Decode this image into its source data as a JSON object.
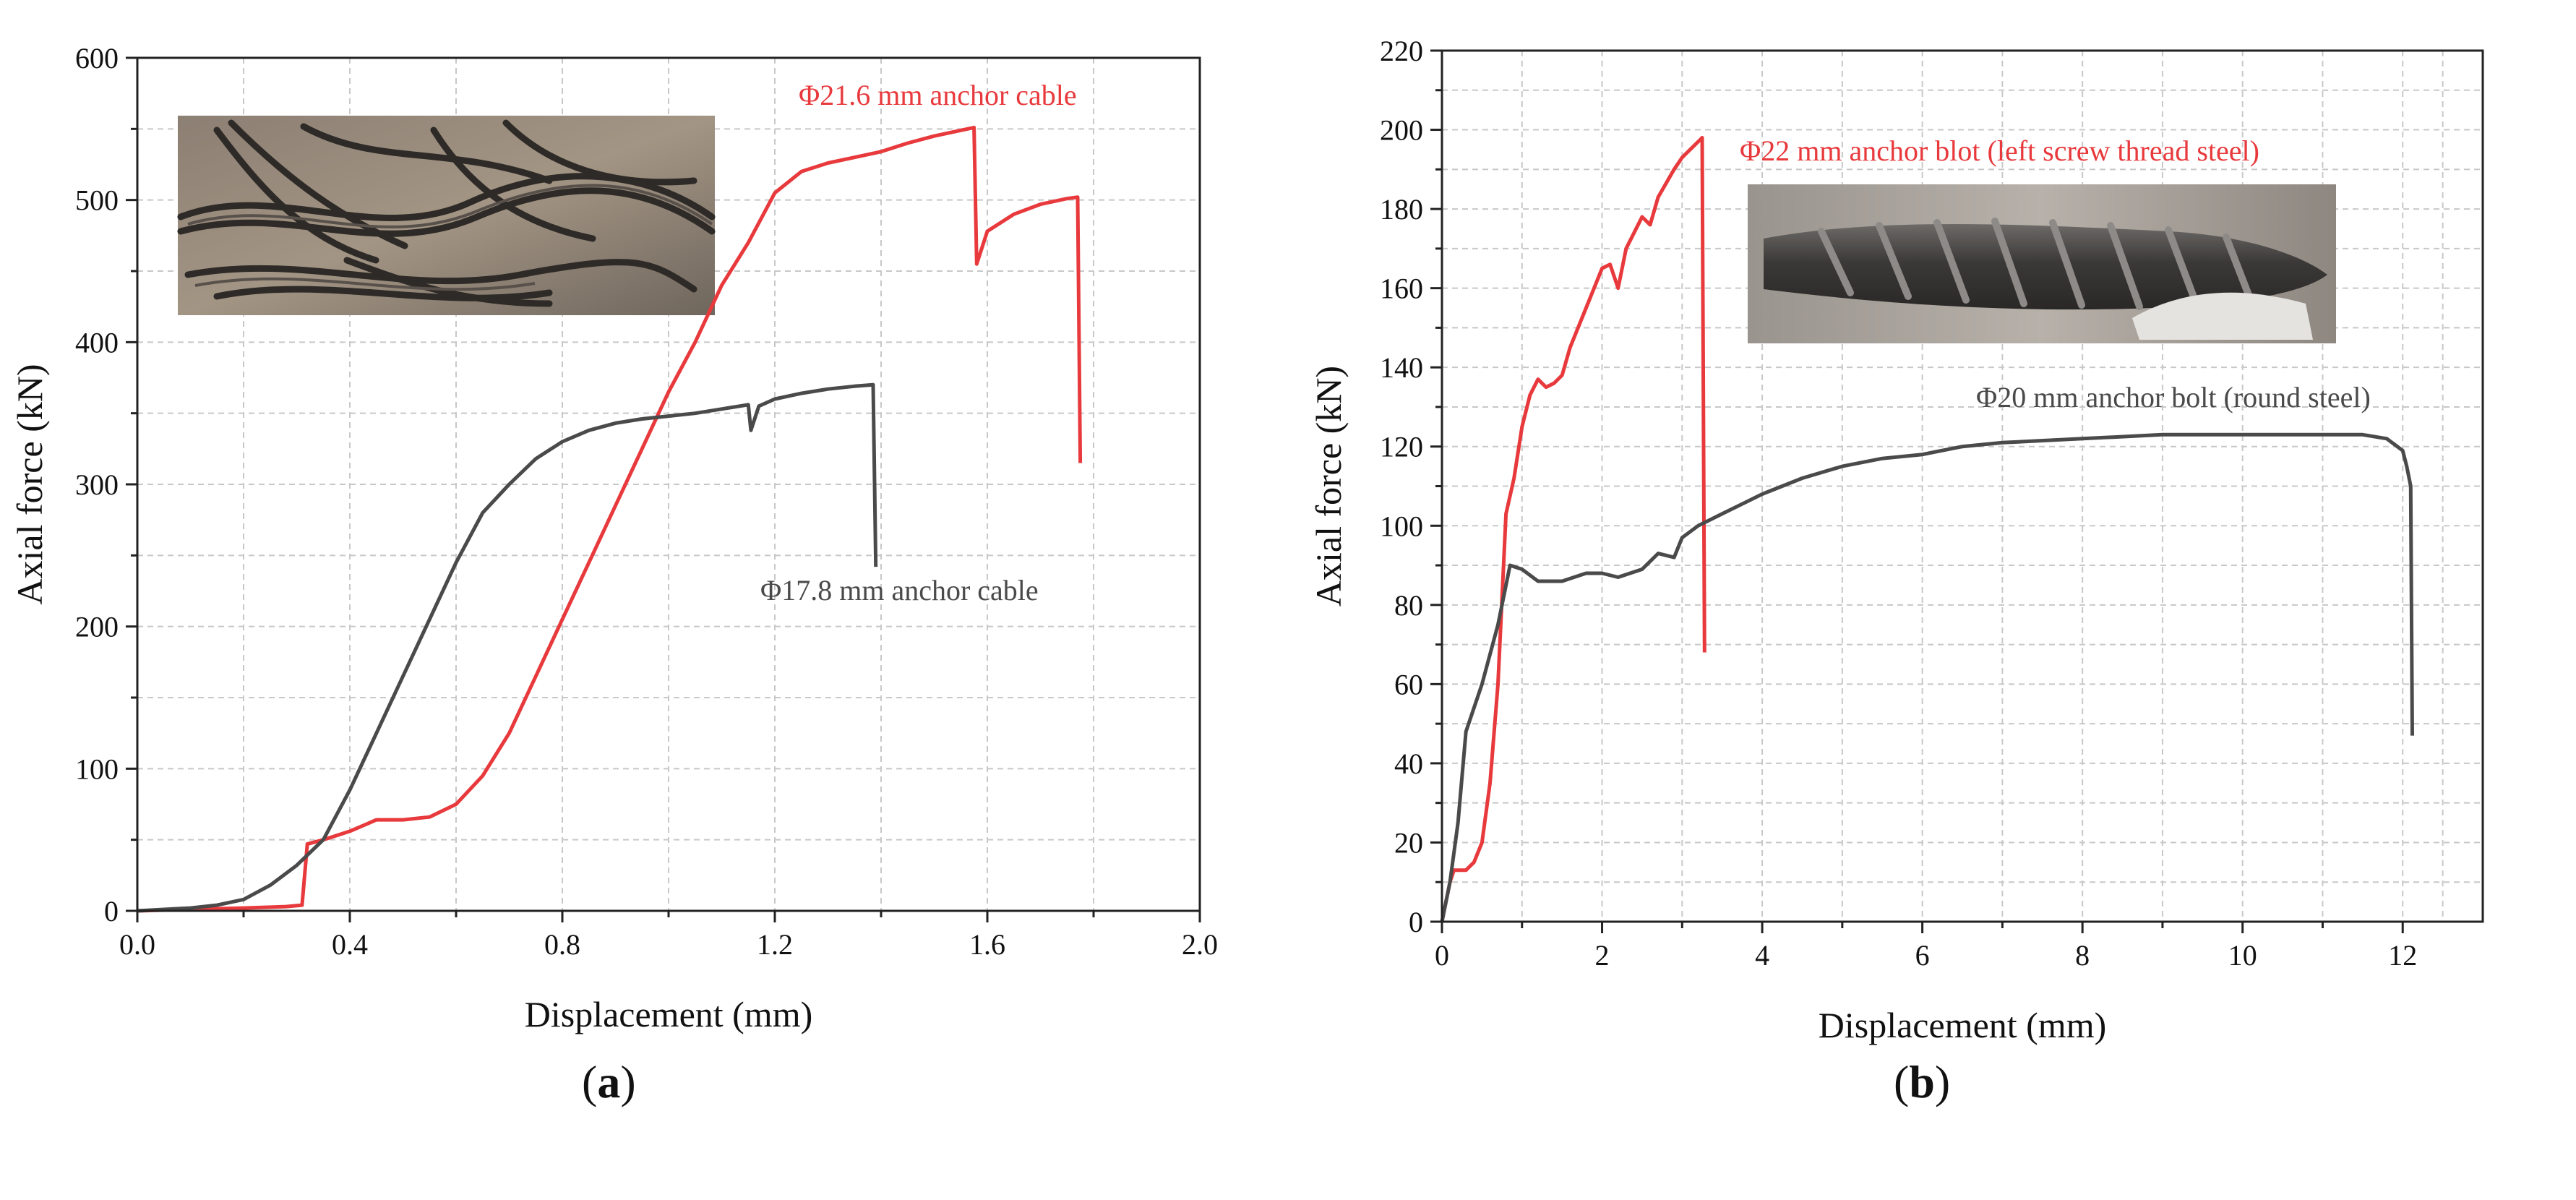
{
  "chart_data": [
    {
      "type": "line",
      "panel": "a",
      "title": "",
      "xlabel": "Displacement (mm)",
      "ylabel": "Axial force (kN)",
      "xlim": [
        0,
        2.0
      ],
      "ylim": [
        0,
        600
      ],
      "xticks": [
        0,
        0.4,
        0.8,
        1.2,
        1.6,
        2.0
      ],
      "xtick_labels": [
        "0.0",
        "0.4",
        "0.8",
        "1.2",
        "1.6",
        "2.0"
      ],
      "yticks": [
        0,
        100,
        200,
        300,
        400,
        500,
        600
      ],
      "ytick_labels": [
        "0",
        "100",
        "200",
        "300",
        "400",
        "500",
        "600"
      ],
      "grid": true,
      "inset_photo": "twisted steel strand wires of failed anchor cable",
      "series": [
        {
          "name": "Φ21.6 mm anchor cable",
          "color": "#e8393c",
          "points": [
            [
              0,
              0
            ],
            [
              0.1,
              1
            ],
            [
              0.2,
              2
            ],
            [
              0.28,
              3
            ],
            [
              0.31,
              4
            ],
            [
              0.32,
              47
            ],
            [
              0.35,
              50
            ],
            [
              0.4,
              56
            ],
            [
              0.45,
              64
            ],
            [
              0.5,
              64
            ],
            [
              0.55,
              66
            ],
            [
              0.6,
              75
            ],
            [
              0.65,
              95
            ],
            [
              0.7,
              125
            ],
            [
              0.75,
              165
            ],
            [
              0.8,
              205
            ],
            [
              0.85,
              245
            ],
            [
              0.9,
              285
            ],
            [
              0.95,
              325
            ],
            [
              1.0,
              365
            ],
            [
              1.05,
              400
            ],
            [
              1.1,
              440
            ],
            [
              1.15,
              470
            ],
            [
              1.2,
              505
            ],
            [
              1.25,
              520
            ],
            [
              1.3,
              526
            ],
            [
              1.35,
              530
            ],
            [
              1.4,
              534
            ],
            [
              1.45,
              540
            ],
            [
              1.5,
              545
            ],
            [
              1.55,
              549
            ],
            [
              1.575,
              551
            ],
            [
              1.58,
              455
            ],
            [
              1.6,
              478
            ],
            [
              1.65,
              490
            ],
            [
              1.7,
              497
            ],
            [
              1.75,
              501
            ],
            [
              1.77,
              502
            ],
            [
              1.775,
              315
            ]
          ]
        },
        {
          "name": "Φ17.8 mm anchor cable",
          "color": "#4a4a4a",
          "points": [
            [
              0,
              0
            ],
            [
              0.05,
              1
            ],
            [
              0.1,
              2
            ],
            [
              0.15,
              4
            ],
            [
              0.2,
              8
            ],
            [
              0.25,
              18
            ],
            [
              0.3,
              32
            ],
            [
              0.35,
              50
            ],
            [
              0.4,
              85
            ],
            [
              0.45,
              125
            ],
            [
              0.5,
              165
            ],
            [
              0.55,
              205
            ],
            [
              0.6,
              245
            ],
            [
              0.65,
              280
            ],
            [
              0.7,
              300
            ],
            [
              0.75,
              318
            ],
            [
              0.8,
              330
            ],
            [
              0.85,
              338
            ],
            [
              0.9,
              343
            ],
            [
              0.95,
              346
            ],
            [
              1.0,
              348
            ],
            [
              1.05,
              350
            ],
            [
              1.1,
              353
            ],
            [
              1.15,
              356
            ],
            [
              1.155,
              338
            ],
            [
              1.17,
              355
            ],
            [
              1.2,
              360
            ],
            [
              1.25,
              364
            ],
            [
              1.3,
              367
            ],
            [
              1.35,
              369
            ],
            [
              1.385,
              370
            ],
            [
              1.39,
              242
            ]
          ]
        }
      ]
    },
    {
      "type": "line",
      "panel": "b",
      "title": "",
      "xlabel": "Displacement (mm)",
      "ylabel": "Axial force (kN)",
      "xlim": [
        0,
        13
      ],
      "ylim": [
        0,
        220
      ],
      "xticks": [
        0,
        2,
        4,
        6,
        8,
        10,
        12
      ],
      "xtick_labels": [
        "0",
        "2",
        "4",
        "6",
        "8",
        "10",
        "12"
      ],
      "yticks": [
        0,
        20,
        40,
        60,
        80,
        100,
        120,
        140,
        160,
        180,
        200,
        220
      ],
      "ytick_labels": [
        "0",
        "20",
        "40",
        "60",
        "80",
        "100",
        "120",
        "140",
        "160",
        "180",
        "200",
        "220"
      ],
      "grid": true,
      "inset_photo": "deformed ribbed (screw thread) steel bolt",
      "series": [
        {
          "name": "Φ22 mm anchor blot (left screw thread steel)",
          "color": "#e8393c",
          "points": [
            [
              0,
              0
            ],
            [
              0.05,
              5
            ],
            [
              0.1,
              10
            ],
            [
              0.15,
              13
            ],
            [
              0.3,
              13
            ],
            [
              0.4,
              15
            ],
            [
              0.5,
              20
            ],
            [
              0.6,
              35
            ],
            [
              0.7,
              60
            ],
            [
              0.8,
              103
            ],
            [
              0.9,
              112
            ],
            [
              1.0,
              125
            ],
            [
              1.1,
              133
            ],
            [
              1.2,
              137
            ],
            [
              1.3,
              135
            ],
            [
              1.4,
              136
            ],
            [
              1.5,
              138
            ],
            [
              1.6,
              145
            ],
            [
              1.8,
              155
            ],
            [
              2.0,
              165
            ],
            [
              2.1,
              166
            ],
            [
              2.2,
              160
            ],
            [
              2.3,
              170
            ],
            [
              2.5,
              178
            ],
            [
              2.6,
              176
            ],
            [
              2.7,
              183
            ],
            [
              2.9,
              190
            ],
            [
              3.0,
              193
            ],
            [
              3.1,
              195
            ],
            [
              3.2,
              197
            ],
            [
              3.25,
              198
            ],
            [
              3.28,
              68
            ]
          ]
        },
        {
          "name": "Φ20 mm anchor bolt (round steel)",
          "color": "#4a4a4a",
          "points": [
            [
              0,
              0
            ],
            [
              0.1,
              10
            ],
            [
              0.2,
              25
            ],
            [
              0.3,
              48
            ],
            [
              0.5,
              60
            ],
            [
              0.7,
              75
            ],
            [
              0.85,
              90
            ],
            [
              1.0,
              89
            ],
            [
              1.2,
              86
            ],
            [
              1.5,
              86
            ],
            [
              1.8,
              88
            ],
            [
              2.0,
              88
            ],
            [
              2.2,
              87
            ],
            [
              2.5,
              89
            ],
            [
              2.7,
              93
            ],
            [
              2.9,
              92
            ],
            [
              3.0,
              97
            ],
            [
              3.2,
              100
            ],
            [
              3.5,
              103
            ],
            [
              4.0,
              108
            ],
            [
              4.5,
              112
            ],
            [
              5.0,
              115
            ],
            [
              5.5,
              117
            ],
            [
              6.0,
              118
            ],
            [
              6.5,
              120
            ],
            [
              7.0,
              121
            ],
            [
              8.0,
              122
            ],
            [
              9.0,
              123
            ],
            [
              10.0,
              123
            ],
            [
              11.0,
              123
            ],
            [
              11.5,
              123
            ],
            [
              11.8,
              122
            ],
            [
              12.0,
              119
            ],
            [
              12.05,
              115
            ],
            [
              12.1,
              110
            ],
            [
              12.12,
              47
            ]
          ]
        }
      ]
    }
  ],
  "panel_labels": {
    "a": "a",
    "b": "b"
  },
  "colors": {
    "red": "#e8393c",
    "dark": "#4a4a4a",
    "grid": "#c8c8c8"
  }
}
